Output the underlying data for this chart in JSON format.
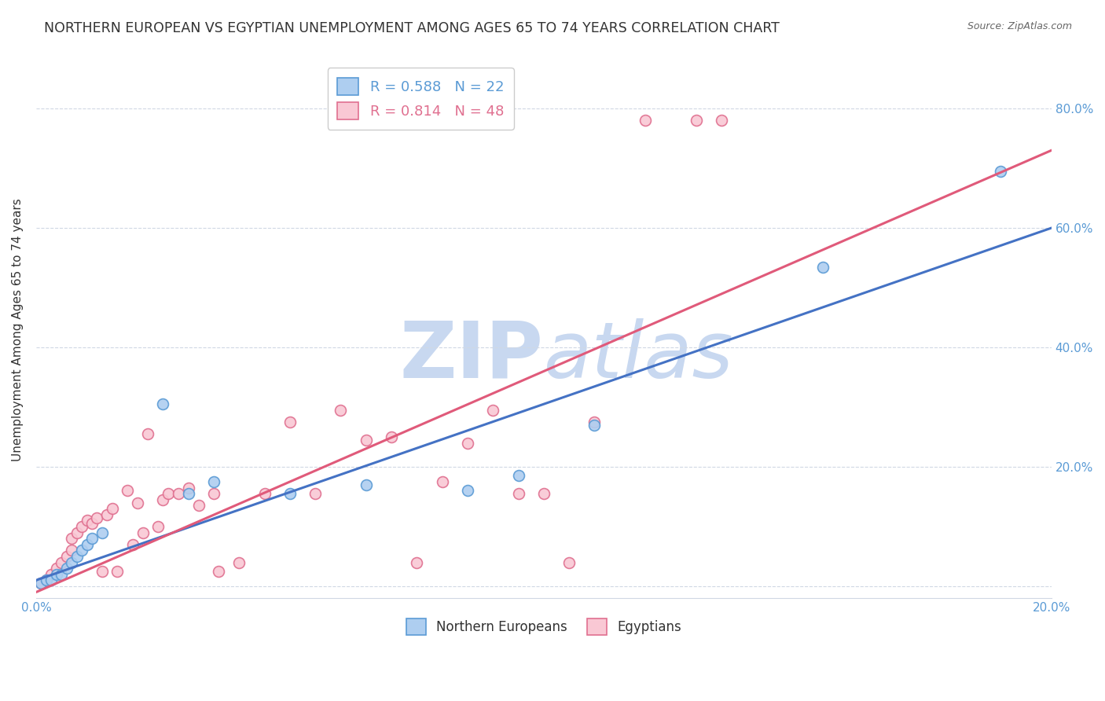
{
  "title": "NORTHERN EUROPEAN VS EGYPTIAN UNEMPLOYMENT AMONG AGES 65 TO 74 YEARS CORRELATION CHART",
  "source": "Source: ZipAtlas.com",
  "ylabel": "Unemployment Among Ages 65 to 74 years",
  "xlim": [
    0.0,
    0.2
  ],
  "ylim": [
    -0.02,
    0.88
  ],
  "xticks": [
    0.0,
    0.04,
    0.08,
    0.12,
    0.16,
    0.2
  ],
  "xtick_labels": [
    "0.0%",
    "",
    "",
    "",
    "",
    "20.0%"
  ],
  "ytick_vals": [
    0.0,
    0.2,
    0.4,
    0.6,
    0.8
  ],
  "ytick_labels_right": [
    "",
    "20.0%",
    "40.0%",
    "60.0%",
    "80.0%"
  ],
  "title_color": "#333333",
  "axis_color": "#5b9bd5",
  "watermark_zip": "ZIP",
  "watermark_atlas": "atlas",
  "watermark_color": "#c8d8f0",
  "legend_blue_r": "0.588",
  "legend_blue_n": "22",
  "legend_pink_r": "0.814",
  "legend_pink_n": "48",
  "blue_scatter_x": [
    0.001,
    0.002,
    0.003,
    0.004,
    0.005,
    0.006,
    0.007,
    0.008,
    0.009,
    0.01,
    0.011,
    0.013,
    0.025,
    0.03,
    0.035,
    0.05,
    0.065,
    0.085,
    0.095,
    0.11,
    0.155,
    0.19
  ],
  "blue_scatter_y": [
    0.005,
    0.01,
    0.01,
    0.02,
    0.02,
    0.03,
    0.04,
    0.05,
    0.06,
    0.07,
    0.08,
    0.09,
    0.305,
    0.155,
    0.175,
    0.155,
    0.17,
    0.16,
    0.185,
    0.27,
    0.535,
    0.695
  ],
  "pink_scatter_x": [
    0.001,
    0.002,
    0.003,
    0.004,
    0.005,
    0.006,
    0.007,
    0.007,
    0.008,
    0.009,
    0.01,
    0.011,
    0.012,
    0.013,
    0.014,
    0.015,
    0.016,
    0.018,
    0.019,
    0.02,
    0.021,
    0.022,
    0.024,
    0.025,
    0.026,
    0.028,
    0.03,
    0.032,
    0.035,
    0.036,
    0.04,
    0.045,
    0.05,
    0.055,
    0.06,
    0.065,
    0.07,
    0.075,
    0.08,
    0.085,
    0.09,
    0.095,
    0.1,
    0.105,
    0.11,
    0.12,
    0.13,
    0.135
  ],
  "pink_scatter_y": [
    0.005,
    0.01,
    0.02,
    0.03,
    0.04,
    0.05,
    0.06,
    0.08,
    0.09,
    0.1,
    0.11,
    0.105,
    0.115,
    0.025,
    0.12,
    0.13,
    0.025,
    0.16,
    0.07,
    0.14,
    0.09,
    0.255,
    0.1,
    0.145,
    0.155,
    0.155,
    0.165,
    0.135,
    0.155,
    0.025,
    0.04,
    0.155,
    0.275,
    0.155,
    0.295,
    0.245,
    0.25,
    0.04,
    0.175,
    0.24,
    0.295,
    0.155,
    0.155,
    0.04,
    0.275,
    0.78,
    0.78,
    0.78
  ],
  "blue_line_x": [
    0.0,
    0.2
  ],
  "blue_line_y": [
    0.01,
    0.6
  ],
  "pink_line_x": [
    0.0,
    0.2
  ],
  "pink_line_y": [
    -0.01,
    0.73
  ],
  "scatter_size": 100,
  "blue_fill_color": "#aecef0",
  "pink_fill_color": "#f9c8d4",
  "blue_edge_color": "#5b9bd5",
  "pink_edge_color": "#e07090",
  "blue_line_color": "#4472c4",
  "pink_line_color": "#e05a7a",
  "grid_color": "#d0d8e4",
  "bg_color": "#ffffff",
  "title_fontsize": 12.5,
  "label_fontsize": 11,
  "tick_fontsize": 11
}
